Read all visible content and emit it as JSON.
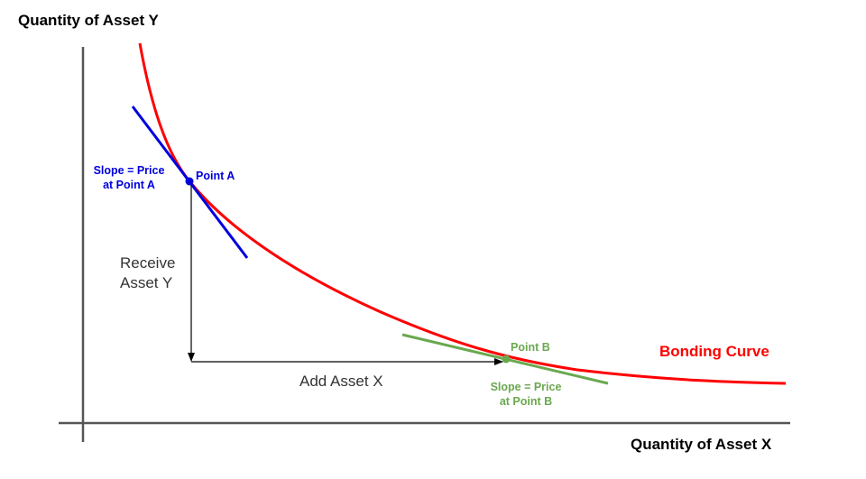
{
  "labels": {
    "y_axis": "Quantity of Asset Y",
    "x_axis": "Quantity of Asset X",
    "curve": "Bonding Curve",
    "receive_line1": "Receive",
    "receive_line2": "Asset Y",
    "add": "Add Asset X",
    "point_a": "Point A",
    "point_b": "Point B",
    "slope_a_line1": "Slope = Price",
    "slope_a_line2": "at Point A",
    "slope_b_line1": "Slope = Price",
    "slope_b_line2": "at Point B"
  },
  "colors": {
    "curve": "#ff0000",
    "tangent_a": "#0000dd",
    "tangent_b": "#6aa84f",
    "axis": "#555555",
    "arrow": "#000000"
  }
}
